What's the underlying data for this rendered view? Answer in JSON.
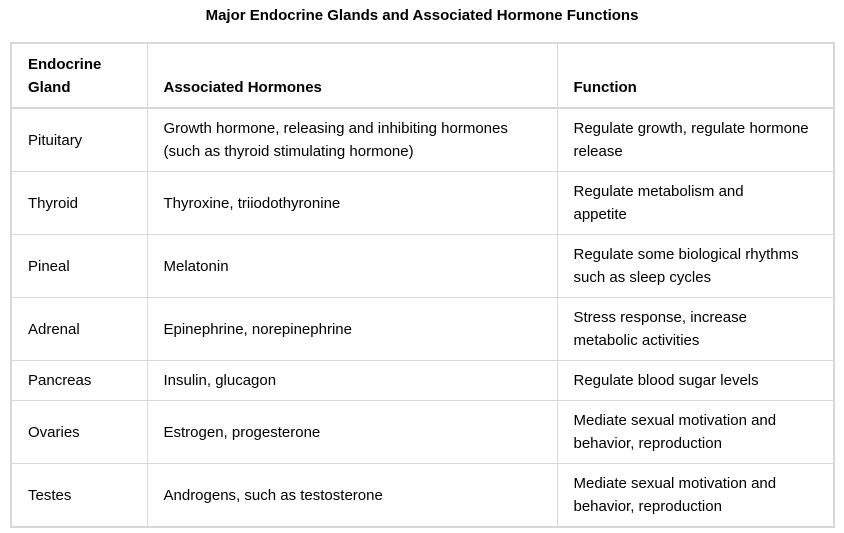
{
  "title": "Major Endocrine Glands and Associated Hormone Functions",
  "table": {
    "headers": [
      "Endocrine Gland",
      "Associated Hormones",
      "Function"
    ],
    "rows": [
      {
        "gland": "Pituitary",
        "hormones": "Growth hormone, releasing and inhibiting hormones (such as thyroid stimulating hormone)",
        "function": "Regulate growth, regulate hormone release"
      },
      {
        "gland": "Thyroid",
        "hormones": "Thyroxine, triiodothyronine",
        "function": "Regulate metabolism and appetite"
      },
      {
        "gland": "Pineal",
        "hormones": "Melatonin",
        "function": "Regulate some biological rhythms such as sleep cycles"
      },
      {
        "gland": "Adrenal",
        "hormones": "Epinephrine, norepinephrine",
        "function": "Stress response, increase metabolic activities"
      },
      {
        "gland": "Pancreas",
        "hormones": "Insulin, glucagon",
        "function": "Regulate blood sugar levels"
      },
      {
        "gland": "Ovaries",
        "hormones": "Estrogen, progesterone",
        "function": "Mediate sexual motivation and behavior, reproduction"
      },
      {
        "gland": "Testes",
        "hormones": "Androgens, such as testosterone",
        "function": "Mediate sexual motivation and behavior, reproduction"
      }
    ]
  }
}
